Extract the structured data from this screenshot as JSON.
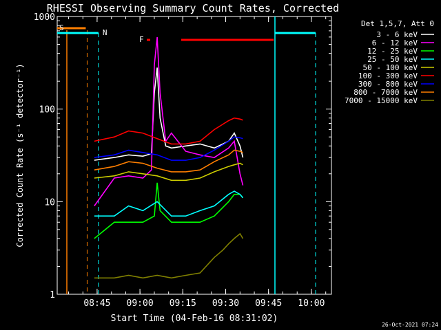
{
  "chart_data": {
    "type": "line",
    "title": "RHESSI Observing Summary Count Rates, Corrected",
    "xlabel": "Start Time (04-Feb-16 08:31:02)",
    "ylabel": "Corrected Count Rate (s⁻¹ detector⁻¹)",
    "y_scale": "log",
    "ylim": [
      1,
      1000
    ],
    "xlim_minutes": [
      0,
      96
    ],
    "x_ticks": [
      "08:45",
      "09:00",
      "09:15",
      "09:30",
      "09:45",
      "10:00"
    ],
    "y_ticks": [
      "1",
      "10",
      "100",
      "1000"
    ],
    "legend_title": "Det 1,5,7, Att 0",
    "legend_placement": "top-right",
    "timestamp": "26-Oct-2021 07:24",
    "flags": {
      "S": {
        "label": "S",
        "color": "#ff7f00",
        "start_min": 0,
        "end_min": 10
      },
      "N": {
        "label": "N",
        "color": "#00ffff",
        "start_min": 13,
        "end_min": 13
      },
      "F": {
        "label": "F",
        "color": "#ff0000",
        "start_min": 28,
        "end_min": 34
      }
    },
    "series": [
      {
        "name": "3 - 6 keV",
        "color": "#ffffff",
        "x": [
          13,
          20,
          25,
          30,
          33,
          34,
          35,
          36,
          38,
          40,
          45,
          50,
          55,
          60,
          62,
          64,
          65
        ],
        "values": [
          28,
          30,
          32,
          31,
          33,
          150,
          280,
          80,
          40,
          38,
          40,
          42,
          38,
          45,
          55,
          40,
          30
        ]
      },
      {
        "name": "6 - 12 keV",
        "color": "#ff00ff",
        "x": [
          13,
          20,
          25,
          30,
          33,
          34,
          35,
          36,
          38,
          40,
          45,
          50,
          55,
          60,
          62,
          64,
          65
        ],
        "values": [
          9,
          18,
          19,
          18,
          22,
          300,
          600,
          150,
          45,
          55,
          35,
          32,
          30,
          38,
          45,
          20,
          15
        ]
      },
      {
        "name": "12 - 25 keV",
        "color": "#00ff00",
        "x": [
          13,
          20,
          25,
          30,
          34,
          35,
          36,
          40,
          45,
          50,
          55,
          60,
          62,
          64,
          65
        ],
        "values": [
          4,
          6,
          6,
          6,
          7,
          16,
          8,
          6,
          6,
          6,
          7,
          10,
          12,
          12,
          11
        ]
      },
      {
        "name": "25 - 50 keV",
        "color": "#00ffff",
        "x": [
          13,
          20,
          25,
          30,
          35,
          40,
          45,
          50,
          55,
          60,
          62,
          64,
          65
        ],
        "values": [
          7,
          7,
          9,
          8,
          10,
          7,
          7,
          8,
          9,
          12,
          13,
          12,
          11
        ]
      },
      {
        "name": "50 - 100 keV",
        "color": "#cccc00",
        "x": [
          13,
          20,
          25,
          30,
          35,
          40,
          45,
          50,
          55,
          60,
          62,
          64,
          65
        ],
        "values": [
          18,
          19,
          21,
          20,
          19,
          17,
          17,
          18,
          21,
          24,
          25,
          26,
          25
        ]
      },
      {
        "name": "100 - 300 keV",
        "color": "#ff0000",
        "x": [
          13,
          20,
          25,
          30,
          35,
          40,
          45,
          50,
          55,
          60,
          62,
          64,
          65
        ],
        "values": [
          45,
          50,
          58,
          55,
          48,
          42,
          42,
          45,
          60,
          75,
          80,
          78,
          76
        ]
      },
      {
        "name": "300 - 800 keV",
        "color": "#0000ff",
        "x": [
          13,
          20,
          25,
          30,
          35,
          40,
          45,
          50,
          55,
          60,
          62,
          64,
          65
        ],
        "values": [
          30,
          32,
          36,
          34,
          32,
          28,
          28,
          30,
          36,
          45,
          50,
          49,
          48
        ]
      },
      {
        "name": "800 - 7000 keV",
        "color": "#ff7f00",
        "x": [
          13,
          20,
          25,
          30,
          35,
          40,
          45,
          50,
          55,
          60,
          62,
          64,
          65
        ],
        "values": [
          22,
          24,
          27,
          26,
          23,
          21,
          21,
          22,
          27,
          32,
          36,
          35,
          34
        ]
      },
      {
        "name": "7000 - 15000 keV",
        "color": "#808000",
        "x": [
          13,
          20,
          25,
          30,
          35,
          40,
          45,
          50,
          55,
          58,
          60,
          62,
          64,
          65
        ],
        "values": [
          1.5,
          1.5,
          1.6,
          1.5,
          1.6,
          1.5,
          1.6,
          1.7,
          2.5,
          3,
          3.5,
          4,
          4.5,
          4
        ]
      }
    ]
  }
}
